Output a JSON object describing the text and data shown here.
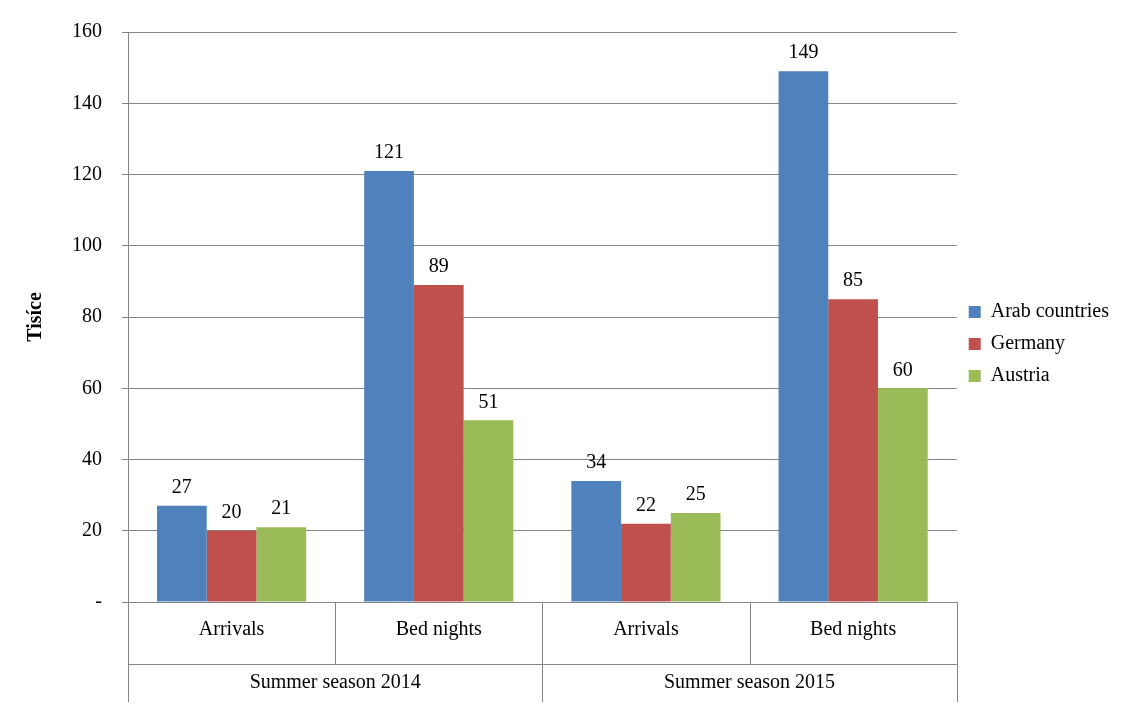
{
  "chart_data": {
    "type": "bar",
    "ylabel": "Tisíce",
    "categories": [
      "Arrivals",
      "Bed nights",
      "Arrivals",
      "Bed nights"
    ],
    "series": [
      {
        "name": "Arab countries",
        "color": "#4f81bd",
        "values": [
          27,
          121,
          34,
          149
        ]
      },
      {
        "name": "Germany",
        "color": "#c0504d",
        "values": [
          20,
          89,
          22,
          85
        ]
      },
      {
        "name": "Austria",
        "color": "#9bbb59",
        "values": [
          21,
          51,
          25,
          60
        ]
      }
    ],
    "ylim": [
      0,
      160
    ],
    "yticks": [
      {
        "value": 0,
        "label": "-"
      },
      20,
      40,
      60,
      80,
      100,
      120,
      140,
      160
    ],
    "grid": "y",
    "legend": "right",
    "data_labels": true,
    "annotations": [
      "Summer season 2014",
      "Summer season 2015"
    ]
  }
}
